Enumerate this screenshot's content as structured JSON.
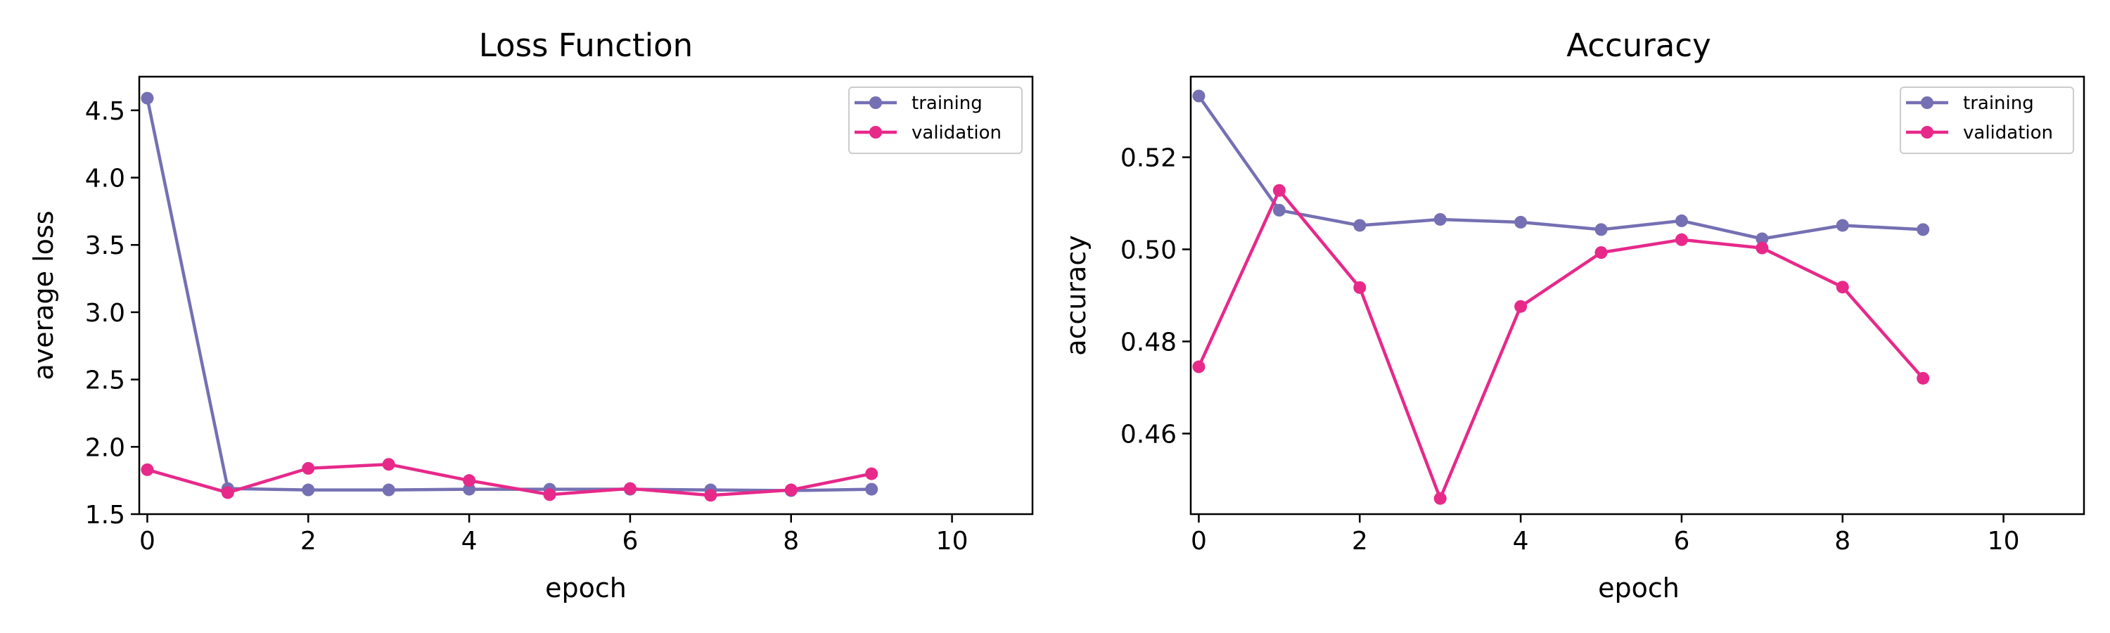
{
  "chart_data": [
    {
      "type": "line",
      "title": "Loss Function",
      "xlabel": "epoch",
      "ylabel": "average loss",
      "xlim": [
        -0.1,
        11
      ],
      "ylim": [
        1.5,
        4.75
      ],
      "xticks": [
        0,
        2,
        4,
        6,
        8,
        10
      ],
      "xtick_labels": [
        "0",
        "2",
        "4",
        "6",
        "8",
        "10"
      ],
      "yticks": [
        1.5,
        2.0,
        2.5,
        3.0,
        3.5,
        4.0,
        4.5
      ],
      "ytick_labels": [
        "1.5",
        "2.0",
        "2.5",
        "3.0",
        "3.5",
        "4.0",
        "4.5"
      ],
      "grid": false,
      "legend_position": "top-right",
      "x": [
        0,
        1,
        2,
        3,
        4,
        5,
        6,
        7,
        8,
        9
      ],
      "series": [
        {
          "name": "training",
          "color": "#7570b3",
          "values": [
            4.59,
            1.69,
            1.68,
            1.68,
            1.685,
            1.685,
            1.685,
            1.68,
            1.675,
            1.685
          ]
        },
        {
          "name": "validation",
          "color": "#e7298a",
          "values": [
            1.83,
            1.66,
            1.84,
            1.87,
            1.75,
            1.645,
            1.69,
            1.64,
            1.68,
            1.8
          ]
        }
      ]
    },
    {
      "type": "line",
      "title": "Accuracy",
      "xlabel": "epoch",
      "ylabel": "accuracy",
      "xlim": [
        -0.1,
        11
      ],
      "ylim": [
        0.4425,
        0.5375
      ],
      "xticks": [
        0,
        2,
        4,
        6,
        8,
        10
      ],
      "xtick_labels": [
        "0",
        "2",
        "4",
        "6",
        "8",
        "10"
      ],
      "yticks": [
        0.46,
        0.48,
        0.5,
        0.52
      ],
      "ytick_labels": [
        "0.46",
        "0.48",
        "0.50",
        "0.52"
      ],
      "grid": false,
      "legend_position": "top-right",
      "x": [
        0,
        1,
        2,
        3,
        4,
        5,
        6,
        7,
        8,
        9
      ],
      "series": [
        {
          "name": "training",
          "color": "#7570b3",
          "values": [
            0.5333,
            0.5085,
            0.5052,
            0.5065,
            0.5059,
            0.5043,
            0.5062,
            0.5023,
            0.5052,
            0.5043
          ]
        },
        {
          "name": "validation",
          "color": "#e7298a",
          "values": [
            0.4745,
            0.5128,
            0.4917,
            0.4459,
            0.4876,
            0.4993,
            0.5021,
            0.5003,
            0.4918,
            0.472
          ]
        }
      ]
    }
  ]
}
